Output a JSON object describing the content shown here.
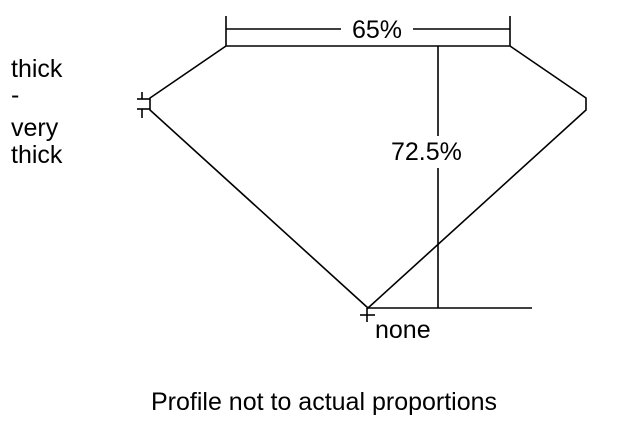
{
  "labels": {
    "table_width": "65%",
    "total_depth": "72.5%",
    "culet": "none",
    "girdle": [
      "thick",
      "-",
      "very",
      "thick"
    ],
    "caption": "Profile not to actual proportions"
  },
  "colors": {
    "line": "#000000",
    "background": "#ffffff"
  }
}
